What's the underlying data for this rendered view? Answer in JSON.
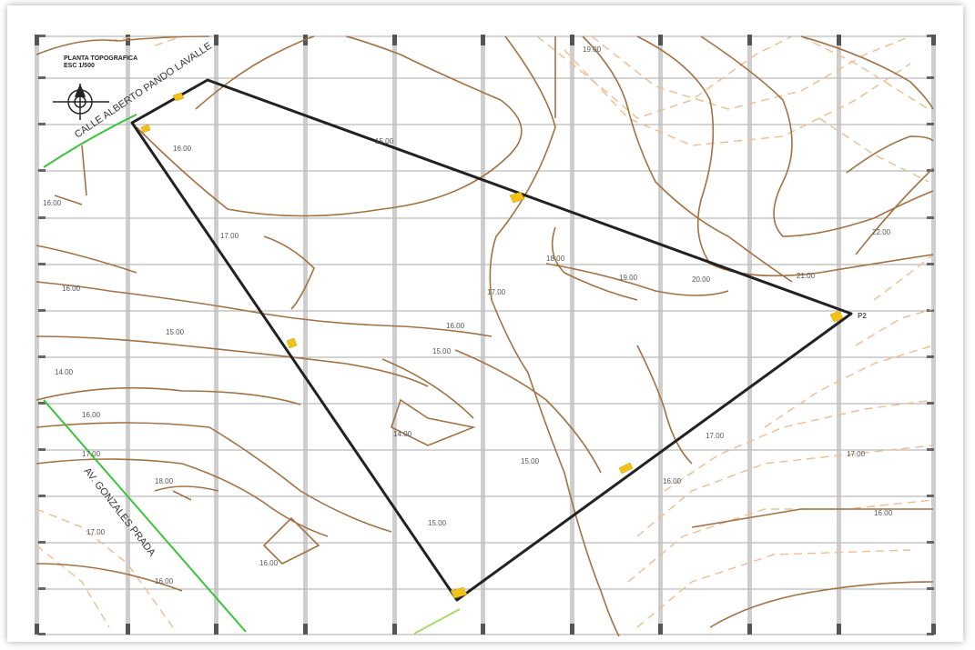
{
  "map": {
    "title": "PLANTA TOPOGRAFICA",
    "scale_text": "ESC 1/500",
    "street_bottom": "AV. GONZALES PRADA",
    "street_top": "CALLE ALBERTO PANDO LAVALLE",
    "vertex_label": "P2",
    "contour_labels": [
      "16.00",
      "15.00",
      "16.00",
      "17.00",
      "16.00",
      "15.00",
      "14.00",
      "16.00",
      "17.00",
      "18.00",
      "17.00",
      "16.00",
      "15.00",
      "14.00",
      "15.00",
      "15.00",
      "16.00",
      "17.00",
      "18.00",
      "19.00",
      "20.00",
      "21.00",
      "22.00",
      "17.00",
      "17.00",
      "16.00",
      "16.00",
      "16.00",
      "19.00"
    ],
    "colors": {
      "contour": "#a47142",
      "contour_dashed": "#f0bc8a",
      "grid": "#a8a8a8",
      "boundary": "#222222",
      "street_line": "#39c43a",
      "marker": "#f2c218"
    }
  }
}
